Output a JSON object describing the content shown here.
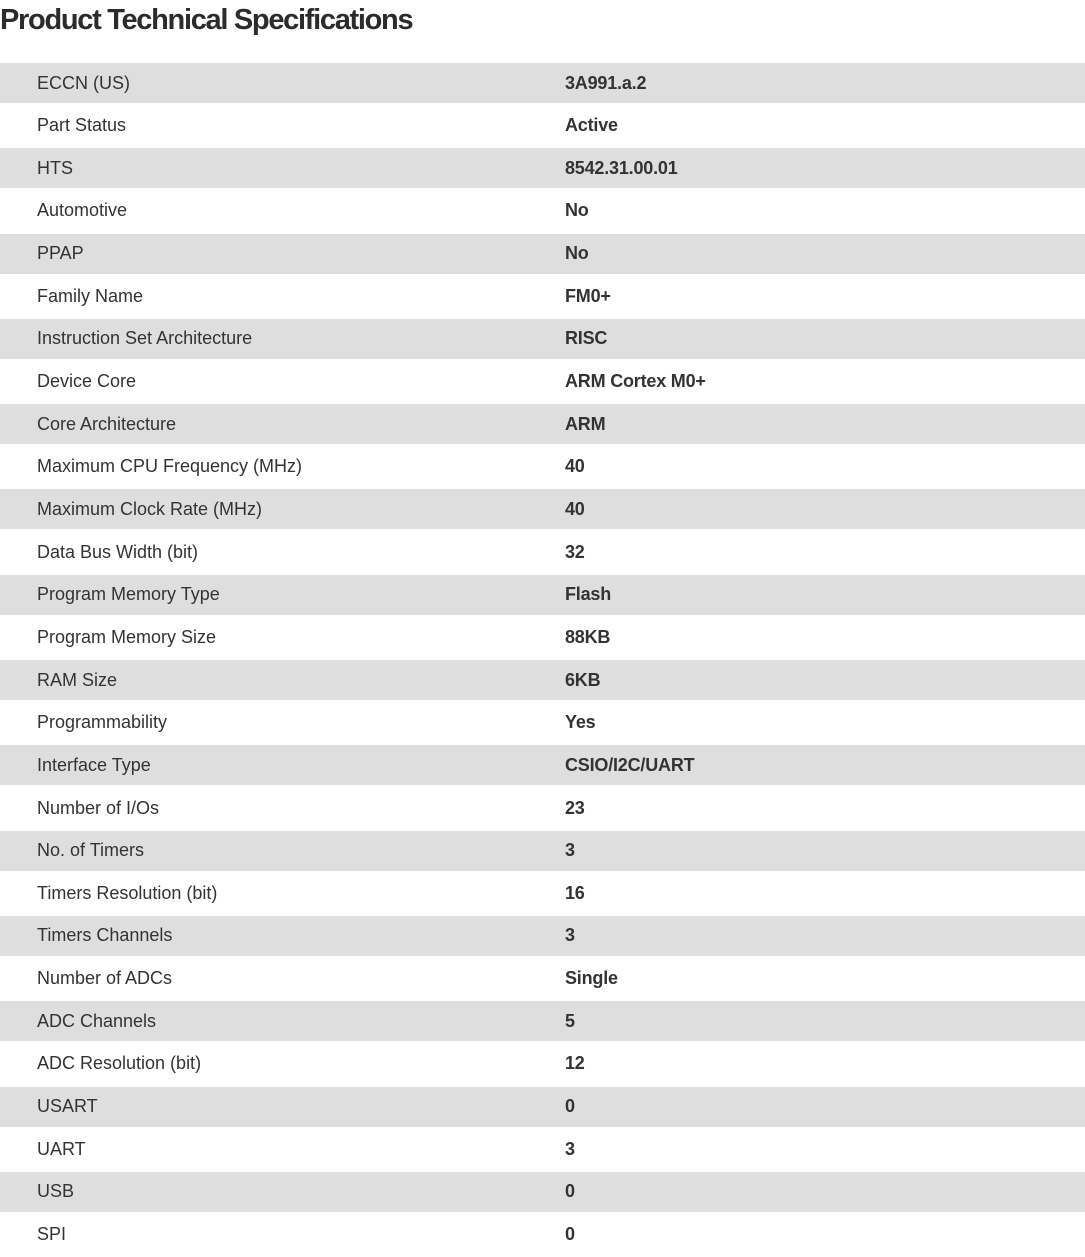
{
  "title": "Product Technical Specifications",
  "specs": [
    {
      "label": "ECCN (US)",
      "value": "3A991.a.2"
    },
    {
      "label": "Part Status",
      "value": "Active"
    },
    {
      "label": "HTS",
      "value": "8542.31.00.01"
    },
    {
      "label": "Automotive",
      "value": "No"
    },
    {
      "label": "PPAP",
      "value": "No"
    },
    {
      "label": "Family Name",
      "value": "FM0+"
    },
    {
      "label": "Instruction Set Architecture",
      "value": "RISC"
    },
    {
      "label": "Device Core",
      "value": "ARM Cortex M0+"
    },
    {
      "label": "Core Architecture",
      "value": "ARM"
    },
    {
      "label": "Maximum CPU Frequency (MHz)",
      "value": "40"
    },
    {
      "label": "Maximum Clock Rate (MHz)",
      "value": "40"
    },
    {
      "label": "Data Bus Width (bit)",
      "value": "32"
    },
    {
      "label": "Program Memory Type",
      "value": "Flash"
    },
    {
      "label": "Program Memory Size",
      "value": "88KB"
    },
    {
      "label": "RAM Size",
      "value": "6KB"
    },
    {
      "label": "Programmability",
      "value": "Yes"
    },
    {
      "label": "Interface Type",
      "value": "CSIO/I2C/UART"
    },
    {
      "label": "Number of I/Os",
      "value": "23"
    },
    {
      "label": "No. of Timers",
      "value": "3"
    },
    {
      "label": "Timers Resolution (bit)",
      "value": "16"
    },
    {
      "label": "Timers Channels",
      "value": "3"
    },
    {
      "label": "Number of ADCs",
      "value": "Single"
    },
    {
      "label": "ADC Channels",
      "value": "5"
    },
    {
      "label": "ADC Resolution (bit)",
      "value": "12"
    },
    {
      "label": "USART",
      "value": "0"
    },
    {
      "label": "UART",
      "value": "3"
    },
    {
      "label": "USB",
      "value": "0"
    },
    {
      "label": "SPI",
      "value": "0"
    }
  ]
}
